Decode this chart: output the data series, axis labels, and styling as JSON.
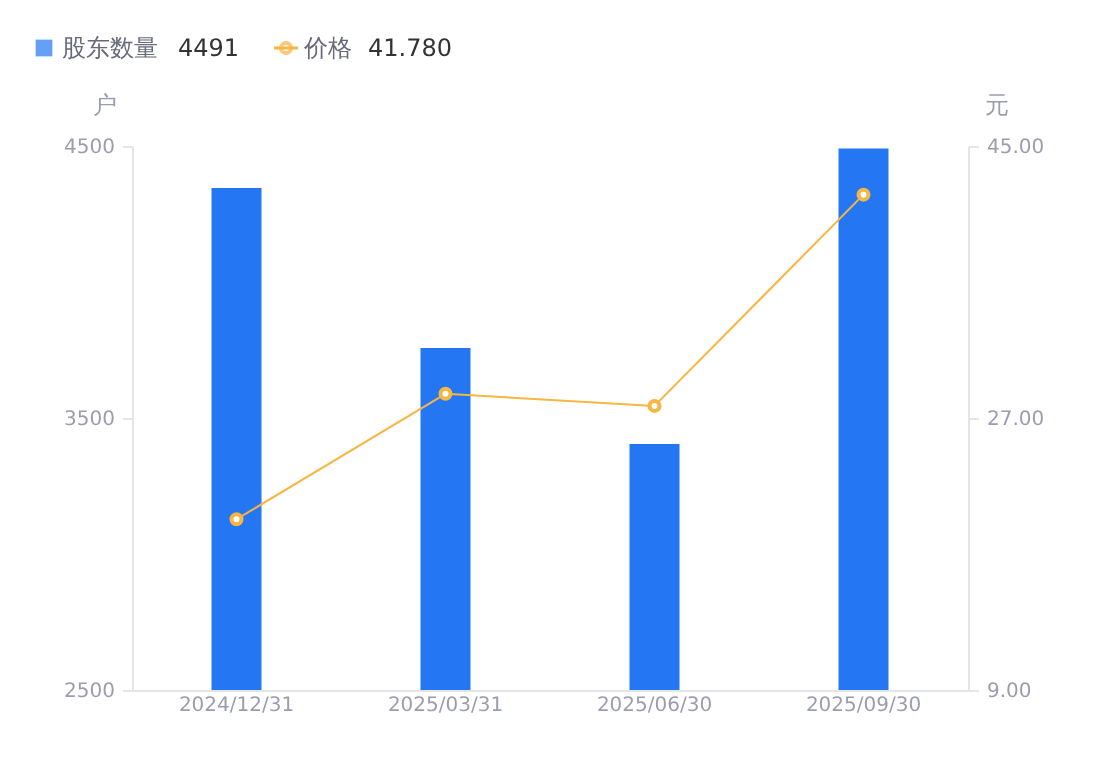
{
  "chart_data": {
    "type": "bar",
    "categories": [
      "2024/12/31",
      "2025/03/31",
      "2025/06/30",
      "2025/09/30"
    ],
    "ylabel": "户",
    "y2label": "元",
    "series": [
      {
        "name": "股东数量",
        "color": "#2576f2",
        "values": [
          4346,
          3757,
          3404,
          4491
        ]
      },
      {
        "name": "价格",
        "type": "line",
        "axis": "y2",
        "color": "#f7b542",
        "values": [
          20.3,
          28.6,
          27.8,
          41.78
        ]
      }
    ],
    "annotations": [
      "4491",
      "41.780"
    ],
    "ylim": [
      2500,
      4500
    ],
    "yticks": [
      2500,
      3500,
      4500
    ],
    "y2lim": [
      9,
      45
    ],
    "y2ticks": [
      {
        "value": 9,
        "label": "9.00"
      },
      {
        "value": 27,
        "label": "27.00"
      },
      {
        "value": 45,
        "label": "45.00"
      }
    ],
    "grid": false,
    "legend": "top left",
    "marker": "circle",
    "line_style": "solid"
  }
}
